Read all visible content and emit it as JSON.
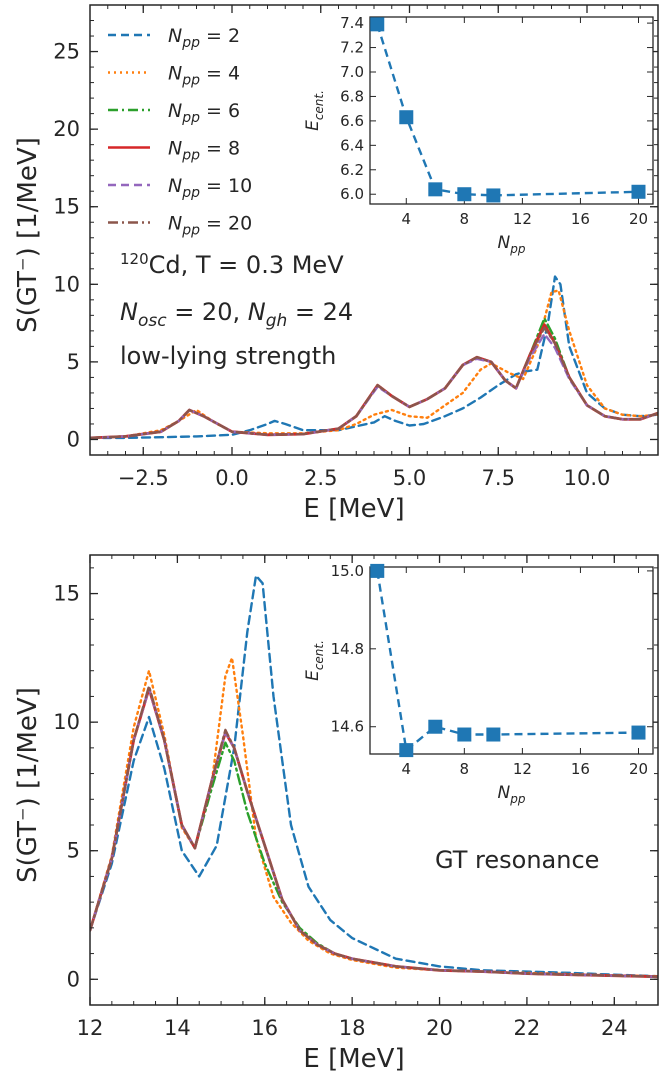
{
  "chart_data": [
    {
      "type": "line",
      "xlabel": "E [MeV]",
      "ylabel": "S(GT⁻) [1/MeV]",
      "xlim": [
        -4,
        12
      ],
      "ylim": [
        -1,
        28
      ],
      "xticks": [
        -2.5,
        0.0,
        2.5,
        5.0,
        7.5,
        10.0
      ],
      "xtick_labels": [
        "−2.5",
        "0.0",
        "2.5",
        "5.0",
        "7.5",
        "10.0"
      ],
      "yticks": [
        0,
        5,
        10,
        15,
        20,
        25
      ],
      "ytick_labels": [
        "0",
        "5",
        "10",
        "15",
        "20",
        "25"
      ],
      "annotations": [
        "¹²⁰Cd, T = 0.3 MeV",
        "N_osc = 20, N_gh = 24",
        "low-lying strength"
      ],
      "legend": {
        "placement": "top-left",
        "entries": [
          {
            "prefix": "N",
            "sub": "pp",
            "suffix": " = 2",
            "color": "#1f77b4",
            "dash": "8,5"
          },
          {
            "prefix": "N",
            "sub": "pp",
            "suffix": " = 4",
            "color": "#ff7f0e",
            "dash": "2,4"
          },
          {
            "prefix": "N",
            "sub": "pp",
            "suffix": " = 6",
            "color": "#2ca02c",
            "dash": "10,4,2,4"
          },
          {
            "prefix": "N",
            "sub": "pp",
            "suffix": " = 8",
            "color": "#d62728",
            "dash": ""
          },
          {
            "prefix": "N",
            "sub": "pp",
            "suffix": " = 10",
            "color": "#9467bd",
            "dash": "8,5"
          },
          {
            "prefix": "N",
            "sub": "pp",
            "suffix": " = 20",
            "color": "#8c564b",
            "dash": "10,4,2,4"
          }
        ]
      },
      "series": [
        {
          "color": "#1f77b4",
          "dash": "8,5",
          "x": [
            -4,
            -3,
            -2,
            -1,
            0,
            0.5,
            1,
            1.2,
            1.5,
            2,
            3,
            4,
            4.3,
            4.6,
            5,
            5.4,
            6,
            6.5,
            7,
            7.5,
            8,
            8.3,
            8.6,
            8.9,
            9.1,
            9.25,
            9.5,
            10,
            10.5,
            11,
            11.5,
            12
          ],
          "values": [
            0.1,
            0.1,
            0.15,
            0.2,
            0.3,
            0.6,
            1.0,
            1.2,
            1.0,
            0.6,
            0.6,
            1.1,
            1.5,
            1.2,
            0.9,
            1.0,
            1.5,
            2.0,
            2.7,
            3.5,
            4.2,
            4.4,
            4.5,
            7.5,
            10.5,
            10.0,
            6.0,
            3.0,
            2.0,
            1.6,
            1.5,
            1.6
          ]
        },
        {
          "color": "#ff7f0e",
          "dash": "2,4",
          "x": [
            -4,
            -3,
            -2,
            -1.5,
            -1,
            -0.5,
            0,
            1,
            2,
            3,
            3.5,
            4,
            4.5,
            5,
            5.5,
            6,
            6.5,
            7,
            7.3,
            7.8,
            8.2,
            8.6,
            9,
            9.2,
            9.5,
            10,
            10.5,
            11,
            11.5,
            12
          ],
          "values": [
            0.1,
            0.2,
            0.6,
            1.2,
            1.9,
            1.1,
            0.5,
            0.4,
            0.4,
            0.6,
            1.0,
            1.6,
            1.9,
            1.5,
            1.4,
            2.2,
            3.0,
            4.5,
            4.9,
            4.3,
            3.9,
            6.0,
            9.5,
            9.6,
            7.0,
            3.5,
            2.0,
            1.6,
            1.5,
            1.6
          ]
        },
        {
          "color": "#2ca02c",
          "dash": "10,4,2,4",
          "x": [
            -4,
            -3,
            -2,
            -1.5,
            -1.2,
            -0.8,
            0,
            1,
            2,
            3,
            3.5,
            4.1,
            4.5,
            5,
            5.5,
            6,
            6.5,
            6.9,
            7.3,
            7.7,
            8,
            8.4,
            8.8,
            9.1,
            9.5,
            10,
            10.5,
            11,
            11.5,
            12
          ],
          "values": [
            0.1,
            0.2,
            0.5,
            1.2,
            1.9,
            1.5,
            0.5,
            0.3,
            0.35,
            0.7,
            1.5,
            3.5,
            2.8,
            2.1,
            2.6,
            3.3,
            4.8,
            5.3,
            5.0,
            3.8,
            3.3,
            5.5,
            7.8,
            6.5,
            4.0,
            2.2,
            1.5,
            1.3,
            1.3,
            1.7
          ]
        },
        {
          "color": "#d62728",
          "dash": "",
          "x": [
            -4,
            -3,
            -2,
            -1.5,
            -1.2,
            -0.8,
            0,
            1,
            2,
            3,
            3.5,
            4.1,
            4.5,
            5,
            5.5,
            6,
            6.5,
            6.9,
            7.3,
            7.7,
            8,
            8.4,
            8.8,
            9.1,
            9.5,
            10,
            10.5,
            11,
            11.5,
            12
          ],
          "values": [
            0.1,
            0.2,
            0.5,
            1.2,
            1.9,
            1.5,
            0.5,
            0.3,
            0.35,
            0.7,
            1.5,
            3.5,
            2.8,
            2.1,
            2.6,
            3.3,
            4.8,
            5.3,
            5.0,
            3.8,
            3.3,
            5.5,
            7.4,
            6.2,
            4.0,
            2.2,
            1.5,
            1.3,
            1.3,
            1.7
          ]
        },
        {
          "color": "#9467bd",
          "dash": "8,5",
          "x": [
            -4,
            -3,
            -2,
            -1.5,
            -1.2,
            -0.8,
            0,
            1,
            2,
            3,
            3.5,
            4.1,
            4.5,
            5,
            5.5,
            6,
            6.5,
            6.9,
            7.3,
            7.7,
            8,
            8.4,
            8.8,
            9.1,
            9.5,
            10,
            10.5,
            11,
            11.5,
            12
          ],
          "values": [
            0.1,
            0.2,
            0.5,
            1.2,
            1.9,
            1.5,
            0.5,
            0.3,
            0.35,
            0.7,
            1.5,
            3.4,
            2.8,
            2.1,
            2.6,
            3.3,
            4.8,
            5.2,
            5.0,
            3.8,
            3.3,
            5.3,
            6.8,
            5.9,
            3.9,
            2.2,
            1.5,
            1.3,
            1.3,
            1.7
          ]
        },
        {
          "color": "#8c564b",
          "dash": "10,4,2,4",
          "x": [
            -4,
            -3,
            -2,
            -1.5,
            -1.2,
            -0.8,
            0,
            1,
            2,
            3,
            3.5,
            4.1,
            4.5,
            5,
            5.5,
            6,
            6.5,
            6.9,
            7.3,
            7.7,
            8,
            8.4,
            8.8,
            9.1,
            9.5,
            10,
            10.5,
            11,
            11.5,
            12
          ],
          "values": [
            0.1,
            0.2,
            0.5,
            1.2,
            1.9,
            1.5,
            0.5,
            0.3,
            0.35,
            0.7,
            1.5,
            3.5,
            2.8,
            2.1,
            2.6,
            3.3,
            4.8,
            5.3,
            5.0,
            3.8,
            3.3,
            5.5,
            7.2,
            6.2,
            4.0,
            2.2,
            1.5,
            1.3,
            1.3,
            1.7
          ]
        }
      ],
      "inset": {
        "xlabel": "N_pp",
        "ylabel": "E_cent.",
        "xlim": [
          1.5,
          21
        ],
        "ylim": [
          5.92,
          7.45
        ],
        "xticks": [
          4,
          8,
          12,
          16,
          20
        ],
        "xtick_labels": [
          "4",
          "8",
          "12",
          "16",
          "20"
        ],
        "yticks": [
          6.0,
          6.2,
          6.4,
          6.6,
          6.8,
          7.0,
          7.2,
          7.4
        ],
        "ytick_labels": [
          "6.0",
          "6.2",
          "6.4",
          "6.6",
          "6.8",
          "7.0",
          "7.2",
          "7.4"
        ],
        "color": "#1f77b4",
        "x": [
          2,
          4,
          6,
          8,
          10,
          20
        ],
        "values": [
          7.39,
          6.63,
          6.04,
          6.0,
          5.99,
          6.02
        ]
      }
    },
    {
      "type": "line",
      "xlabel": "E [MeV]",
      "ylabel": "S(GT⁻) [1/MeV]",
      "xlim": [
        12,
        25
      ],
      "ylim": [
        -1,
        16.5
      ],
      "xticks": [
        12,
        14,
        16,
        18,
        20,
        22,
        24
      ],
      "xtick_labels": [
        "12",
        "14",
        "16",
        "18",
        "20",
        "22",
        "24"
      ],
      "yticks": [
        0,
        5,
        10,
        15
      ],
      "ytick_labels": [
        "0",
        "5",
        "10",
        "15"
      ],
      "annotations": [
        "GT resonance"
      ],
      "series": [
        {
          "color": "#1f77b4",
          "dash": "8,5",
          "x": [
            12,
            12.5,
            13,
            13.35,
            13.7,
            14.1,
            14.5,
            14.9,
            15.3,
            15.6,
            15.8,
            15.95,
            16.2,
            16.6,
            17,
            17.5,
            18,
            19,
            20,
            21,
            22,
            23,
            24,
            25
          ],
          "values": [
            1.9,
            4.5,
            8.5,
            10.2,
            8.2,
            5.0,
            4.0,
            5.2,
            9.0,
            13.5,
            15.7,
            15.4,
            11.0,
            6.0,
            3.6,
            2.3,
            1.6,
            0.8,
            0.5,
            0.35,
            0.3,
            0.25,
            0.18,
            0.12
          ]
        },
        {
          "color": "#ff7f0e",
          "dash": "2,4",
          "x": [
            12,
            12.5,
            13,
            13.35,
            13.7,
            14.1,
            14.4,
            14.8,
            15.1,
            15.25,
            15.5,
            15.8,
            16.2,
            16.6,
            17,
            17.5,
            18,
            19,
            20,
            21,
            22,
            23,
            24,
            25
          ],
          "values": [
            1.9,
            4.8,
            9.8,
            12.0,
            9.5,
            5.9,
            5.1,
            7.8,
            11.8,
            12.5,
            9.5,
            5.5,
            3.2,
            2.2,
            1.5,
            1.0,
            0.75,
            0.45,
            0.35,
            0.3,
            0.25,
            0.2,
            0.15,
            0.12
          ]
        },
        {
          "color": "#2ca02c",
          "dash": "10,4,2,4",
          "x": [
            12,
            12.5,
            13,
            13.35,
            13.7,
            14.1,
            14.4,
            14.8,
            15.1,
            15.3,
            15.6,
            16,
            16.4,
            16.8,
            17.2,
            17.6,
            18,
            19,
            20,
            21,
            22,
            23,
            24,
            25
          ],
          "values": [
            1.9,
            4.7,
            9.3,
            11.3,
            9.3,
            6.0,
            5.1,
            7.5,
            9.2,
            8.5,
            6.5,
            4.5,
            3.0,
            2.0,
            1.4,
            1.0,
            0.8,
            0.5,
            0.35,
            0.3,
            0.22,
            0.18,
            0.14,
            0.1
          ]
        },
        {
          "color": "#d62728",
          "dash": "",
          "x": [
            12,
            12.5,
            13,
            13.35,
            13.7,
            14.1,
            14.4,
            14.8,
            15.1,
            15.3,
            15.6,
            16,
            16.4,
            16.8,
            17.2,
            17.6,
            18,
            19,
            20,
            21,
            22,
            23,
            24,
            25
          ],
          "values": [
            1.9,
            4.7,
            9.3,
            11.3,
            9.3,
            6.0,
            5.1,
            7.8,
            9.6,
            9.0,
            7.3,
            5.2,
            3.1,
            1.9,
            1.35,
            1.0,
            0.8,
            0.5,
            0.35,
            0.3,
            0.22,
            0.18,
            0.14,
            0.1
          ]
        },
        {
          "color": "#9467bd",
          "dash": "8,5",
          "x": [
            12,
            12.5,
            13,
            13.35,
            13.7,
            14.1,
            14.4,
            14.8,
            15.1,
            15.3,
            15.6,
            16,
            16.4,
            16.8,
            17.2,
            17.6,
            18,
            19,
            20,
            21,
            22,
            23,
            24,
            25
          ],
          "values": [
            1.9,
            4.7,
            9.3,
            11.3,
            9.3,
            6.0,
            5.1,
            7.8,
            9.6,
            9.0,
            7.3,
            5.2,
            3.1,
            1.9,
            1.35,
            1.0,
            0.8,
            0.5,
            0.35,
            0.3,
            0.22,
            0.18,
            0.14,
            0.1
          ]
        },
        {
          "color": "#8c564b",
          "dash": "10,4,2,4",
          "x": [
            12,
            12.5,
            13,
            13.35,
            13.7,
            14.1,
            14.4,
            14.8,
            15.1,
            15.3,
            15.6,
            16,
            16.4,
            16.8,
            17.2,
            17.6,
            18,
            19,
            20,
            21,
            22,
            23,
            24,
            25
          ],
          "values": [
            1.9,
            4.7,
            9.3,
            11.4,
            9.3,
            6.0,
            5.1,
            7.8,
            9.7,
            9.0,
            7.3,
            5.2,
            3.1,
            1.9,
            1.35,
            1.0,
            0.8,
            0.5,
            0.35,
            0.3,
            0.22,
            0.18,
            0.14,
            0.1
          ]
        }
      ],
      "inset": {
        "xlabel": "N_pp",
        "ylabel": "E_cent.",
        "xlim": [
          1.5,
          21
        ],
        "ylim": [
          14.53,
          15.01
        ],
        "xticks": [
          4,
          8,
          12,
          16,
          20
        ],
        "xtick_labels": [
          "4",
          "8",
          "12",
          "16",
          "20"
        ],
        "yticks": [
          14.6,
          14.8,
          15.0
        ],
        "ytick_labels": [
          "14.6",
          "14.8",
          "15.0"
        ],
        "color": "#1f77b4",
        "x": [
          2,
          4,
          6,
          8,
          10,
          20
        ],
        "values": [
          15.0,
          14.54,
          14.6,
          14.58,
          14.58,
          14.585
        ]
      }
    }
  ]
}
